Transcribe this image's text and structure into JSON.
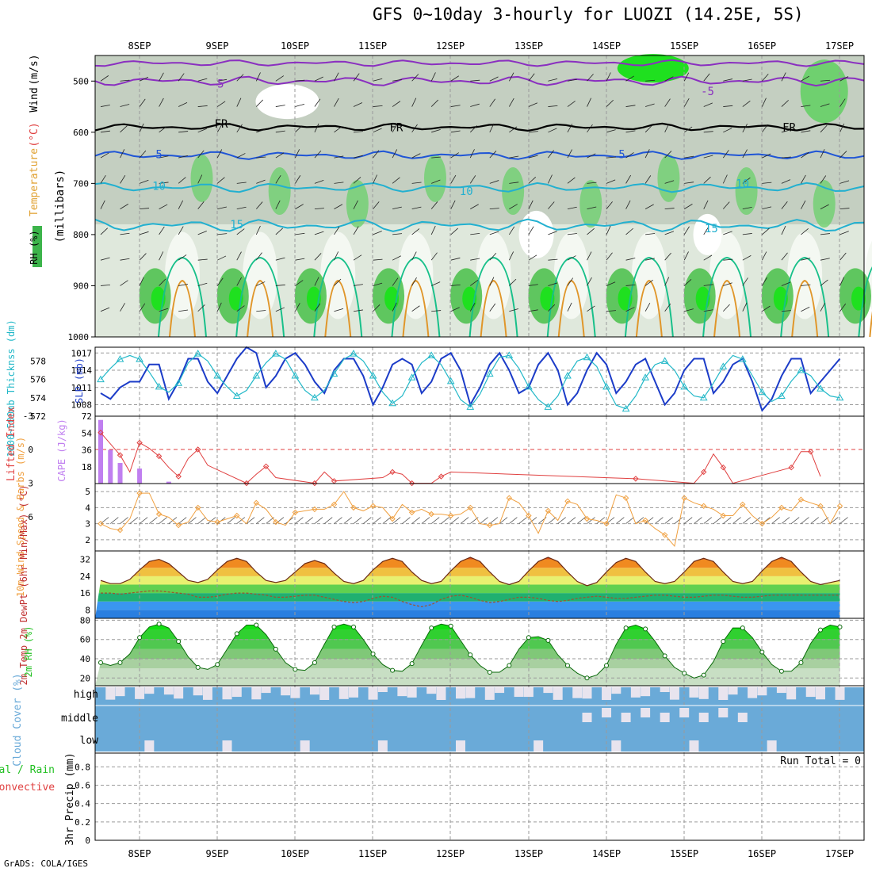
{
  "title": "GFS 0~10day 3-hourly for LUOZI (14.25E, 5S)",
  "credit": "GrADS: COLA/IGES",
  "colors": {
    "grid": "#9a9a9a",
    "temp_cold": "#1f55d6",
    "temp_mid": "#22b0d0",
    "temp_warm": "#18c08a",
    "temp_hot": "#e0962a",
    "purple": "#8a2fc0",
    "rh_green": "#49c049",
    "slp": "#1c3cc8",
    "thickness": "#22b8c8",
    "cape": "#c07ff0",
    "lifted": "#e04040",
    "wind10": "#f0a040",
    "rh2m": "#20c020",
    "cloud": "#6aaad8",
    "cloud_gap": "#e8e4ee",
    "precip_label": "#22c022"
  },
  "chart_data": [
    {
      "type": "heatmap",
      "panel": "upper-air",
      "labels": [
        "RH (%)",
        "Temperature",
        "(°C)",
        "Wind",
        "(m/s)"
      ],
      "ylabel": "(millibars)",
      "y_ticks": [
        500,
        600,
        700,
        800,
        900,
        1000
      ],
      "ylim": [
        1000,
        450
      ],
      "x_ticks": [
        "8SEP",
        "9SEP",
        "10SEP",
        "11SEP",
        "12SEP",
        "13SEP",
        "14SEP",
        "15SEP",
        "16SEP",
        "17SEP"
      ],
      "contour_labels": [
        {
          "text": "-5",
          "day": 1.0,
          "p": 505
        },
        {
          "text": "-5",
          "day": 7.3,
          "p": 520
        },
        {
          "text": "FR",
          "day": 1.05,
          "p": 583
        },
        {
          "text": "FR",
          "day": 3.3,
          "p": 590
        },
        {
          "text": "FR",
          "day": 8.35,
          "p": 590
        },
        {
          "text": "5",
          "day": 0.25,
          "p": 643
        },
        {
          "text": "5",
          "day": 6.2,
          "p": 643
        },
        {
          "text": "10",
          "day": 0.25,
          "p": 705
        },
        {
          "text": "10",
          "day": 4.2,
          "p": 715
        },
        {
          "text": "10",
          "day": 7.75,
          "p": 700
        },
        {
          "text": "15",
          "day": 1.25,
          "p": 780
        },
        {
          "text": "15",
          "day": 7.35,
          "p": 788
        }
      ],
      "temp_levels": [
        {
          "label": "-5",
          "base": 500,
          "amp": 9,
          "color": "#8a2fc0"
        },
        {
          "label": "-5",
          "base": 465,
          "amp": 6,
          "color": "#8a2fc0"
        },
        {
          "label": "FR",
          "base": 590,
          "amp": 7,
          "color": "#000000"
        },
        {
          "label": "5",
          "base": 645,
          "amp": 8,
          "color": "#1f55d6"
        },
        {
          "label": "10",
          "base": 708,
          "amp": 9,
          "color": "#22b0d0"
        },
        {
          "label": "15",
          "base": 782,
          "amp": 12,
          "color": "#22b0d0"
        }
      ]
    },
    {
      "type": "line",
      "panel": "slp-thickness",
      "ylabel_left": "1000~500mb Thicknss (dm)",
      "ylabel_right": "SLP (mb)",
      "y_ticks_left": [
        572,
        574,
        576,
        578
      ],
      "ylim_left": [
        572,
        579.5
      ],
      "y_ticks_right": [
        1008,
        1011,
        1014,
        1017
      ],
      "ylim_right": [
        1006,
        1018
      ],
      "series": [
        {
          "name": "SLP (mb)",
          "y": [
            1010,
            1009,
            1011,
            1012,
            1012,
            1015,
            1015,
            1009,
            1012,
            1016,
            1016,
            1012,
            1010,
            1013,
            1016,
            1018,
            1017,
            1011,
            1013,
            1016,
            1017,
            1015,
            1012,
            1010,
            1014,
            1016,
            1016,
            1013,
            1008,
            1011,
            1015,
            1016,
            1015,
            1010,
            1012,
            1016,
            1017,
            1014,
            1008,
            1011,
            1015,
            1017,
            1014,
            1010,
            1011,
            1015,
            1017,
            1014,
            1008,
            1010,
            1014,
            1017,
            1015,
            1010,
            1012,
            1015,
            1016,
            1012,
            1008,
            1010,
            1014,
            1016,
            1016,
            1010,
            1012,
            1015,
            1016,
            1012,
            1007,
            1009,
            1013,
            1016,
            1016,
            1010,
            1012,
            1014,
            1016
          ]
        },
        {
          "name": "Thickness (dm)",
          "y": [
            576.0,
            577.2,
            578.2,
            578.6,
            578.2,
            576.8,
            575.2,
            574.6,
            575.6,
            577.8,
            578.8,
            578.0,
            576.4,
            575.2,
            574.2,
            574.8,
            576.4,
            577.8,
            578.8,
            578.2,
            576.4,
            574.8,
            574.0,
            574.8,
            576.6,
            578.2,
            578.8,
            578.0,
            576.4,
            574.6,
            573.4,
            574.2,
            576.2,
            577.8,
            578.6,
            577.6,
            575.8,
            573.8,
            573.0,
            574.4,
            576.6,
            578.4,
            578.6,
            577.2,
            575.2,
            573.8,
            573.0,
            574.2,
            576.4,
            578.0,
            578.4,
            577.4,
            575.2,
            573.2,
            572.8,
            574.2,
            576.2,
            577.6,
            578.0,
            577.0,
            575.2,
            574.2,
            574.0,
            575.6,
            577.4,
            578.6,
            578.2,
            576.4,
            574.6,
            573.6,
            574.2,
            575.8,
            577.0,
            576.4,
            575.0,
            574.2,
            574.0
          ]
        }
      ]
    },
    {
      "type": "bar",
      "panel": "cape-lifted-index",
      "ylabel_left": "Lifted Index",
      "ylabel_right": "CAPE (J/kg)",
      "y_ticks_left": [
        -3,
        0,
        3,
        6
      ],
      "y_ticks_left_labels": [
        "-3",
        "0",
        "3",
        "6"
      ],
      "y_ticks_right": [
        18,
        36,
        54,
        72
      ],
      "cape_ylim": [
        0,
        72
      ],
      "cape_values": [
        68,
        36,
        22,
        0,
        16,
        0,
        0,
        2,
        0,
        0,
        0,
        0,
        0,
        0,
        0,
        0,
        0,
        0,
        0,
        0,
        0,
        0,
        0,
        0,
        0,
        0,
        0,
        0,
        0,
        0,
        0,
        0,
        0,
        0,
        0,
        0,
        0,
        0,
        0,
        0,
        0,
        0,
        0,
        0,
        0,
        0,
        0,
        0,
        0,
        0,
        0,
        0,
        0,
        0,
        0,
        0,
        0,
        0,
        0,
        0,
        0,
        0,
        0,
        0,
        0,
        0,
        0,
        0,
        0,
        0,
        0,
        0,
        0,
        0,
        0,
        0,
        0
      ],
      "lifted_index_values": [
        -1.5,
        -0.5,
        0.5,
        2.0,
        -0.6,
        -0.1,
        0.6,
        1.6,
        2.4,
        0.8,
        0.0,
        1.4,
        3.4,
        4.0,
        3.5,
        3.0,
        2.2,
        1.5,
        2.5,
        3.6,
        4.5,
        3.8,
        3.0,
        2.0,
        2.8,
        3.8,
        4.8,
        4.2,
        3.4,
        2.5,
        2.0,
        2.2,
        3.0,
        3.4,
        3.0,
        2.4,
        2.0,
        3.4,
        4.3,
        4.8,
        5.0,
        4.8,
        4.0,
        3.2,
        3.6,
        4.3,
        5.0,
        4.8,
        3.6,
        4.2,
        4.4,
        5.0,
        5.0,
        4.6,
        3.5,
        2.6,
        3.8,
        4.6,
        5.2,
        5.0,
        4.2,
        3.0,
        2.0,
        0.4,
        1.6,
        3.0,
        3.5,
        4.2,
        5.0,
        4.6,
        3.4,
        1.6,
        0.2,
        0.2,
        2.4,
        4.6,
        5.0
      ]
    },
    {
      "type": "line",
      "panel": "10m-wind",
      "ylabel": "10m Wind Speed & Barbs (m/s)",
      "y_ticks": [
        2,
        3,
        4,
        5
      ],
      "ylim": [
        1.3,
        5.5
      ],
      "series": [
        {
          "name": "10m Wind Speed",
          "y": [
            3.0,
            2.7,
            2.6,
            3.3,
            4.9,
            4.9,
            3.6,
            3.4,
            2.9,
            3.1,
            4.0,
            3.2,
            3.1,
            3.3,
            3.5,
            3.0,
            4.3,
            3.9,
            3.1,
            2.9,
            3.7,
            3.8,
            3.9,
            3.9,
            4.2,
            5.0,
            4.0,
            3.8,
            4.1,
            4.0,
            3.3,
            4.2,
            3.7,
            3.9,
            3.6,
            3.6,
            3.5,
            3.6,
            4.0,
            3.0,
            2.9,
            3.0,
            4.6,
            4.3,
            3.5,
            2.4,
            3.8,
            3.2,
            4.4,
            4.2,
            3.3,
            3.2,
            3.0,
            4.8,
            4.6,
            3.0,
            3.2,
            2.7,
            2.3,
            1.6,
            4.6,
            4.3,
            4.1,
            3.9,
            3.5,
            3.5,
            4.2,
            3.5,
            3.0,
            3.4,
            4.0,
            3.8,
            4.5,
            4.3,
            4.1,
            3.0,
            4.1
          ]
        }
      ]
    },
    {
      "type": "area",
      "panel": "2m-temp",
      "ylabel": "2m Temp 2m DewPt (6hr Min/Max) (°C)",
      "y_ticks": [
        8,
        16,
        24,
        32
      ],
      "ylim": [
        4,
        36
      ],
      "series": [
        {
          "name": "2m Temp",
          "y": [
            22.0,
            20.5,
            20.5,
            22.5,
            27,
            31,
            32,
            30,
            26,
            22,
            21,
            22.5,
            27,
            31,
            32.5,
            31,
            26,
            22,
            21,
            22,
            26,
            30,
            31.5,
            30,
            25.5,
            21.5,
            20.5,
            22,
            27,
            31,
            32.5,
            31,
            26,
            22,
            20.5,
            21.5,
            26.5,
            31,
            33,
            31,
            26,
            21.5,
            20,
            21.5,
            26.5,
            31,
            33,
            31,
            26,
            21.5,
            19.5,
            21,
            26,
            30.5,
            32.5,
            31,
            26,
            21.5,
            20.5,
            21.5,
            26,
            31,
            32.5,
            31,
            26,
            21.5,
            20.5,
            21.5,
            26.5,
            31,
            33,
            31,
            26,
            21.5,
            20,
            21,
            22
          ]
        },
        {
          "name": "2m DewPt",
          "y": [
            16,
            16,
            15.5,
            16,
            16.5,
            17,
            17,
            16.5,
            16,
            15.5,
            14,
            14,
            14.5,
            15.5,
            16,
            16,
            15.5,
            15,
            14,
            14,
            14.5,
            15,
            15,
            14,
            13,
            12,
            11.5,
            12,
            13.5,
            14.5,
            14,
            12,
            10.5,
            9.5,
            10.5,
            13,
            14.5,
            15,
            14,
            12.5,
            11.5,
            12,
            13,
            14,
            14,
            13.5,
            12.5,
            12,
            12.5,
            13.5,
            14,
            14.5,
            14,
            13.5,
            13.5,
            14,
            14.5,
            15,
            15,
            14.5,
            14,
            14,
            14.5,
            15,
            15,
            14.5,
            14,
            14,
            14.5,
            15,
            15,
            15,
            15,
            15,
            15,
            15,
            15
          ]
        }
      ]
    },
    {
      "type": "area",
      "panel": "2m-rh",
      "ylabel": "2m RH (%)",
      "y_ticks": [
        20,
        40,
        60,
        80
      ],
      "ylim": [
        12,
        82
      ],
      "series": [
        {
          "name": "2m RH",
          "y": [
            36,
            33,
            36,
            45,
            62,
            73,
            76,
            72,
            58,
            42,
            31,
            29,
            34,
            50,
            66,
            75,
            75,
            65,
            50,
            36,
            29,
            28,
            36,
            55,
            73,
            76,
            73,
            60,
            45,
            34,
            28,
            27,
            35,
            54,
            72,
            76,
            74,
            59,
            44,
            33,
            26,
            26,
            33,
            50,
            62,
            63,
            59,
            44,
            33,
            25,
            20,
            23,
            33,
            55,
            72,
            75,
            71,
            58,
            43,
            31,
            25,
            20,
            23,
            37,
            58,
            72,
            72,
            62,
            47,
            34,
            27,
            27,
            36,
            56,
            70,
            75,
            73
          ]
        }
      ]
    },
    {
      "type": "bar",
      "panel": "cloud-cover",
      "ylabel": "Cloud Cover (%)",
      "layers": [
        "high",
        "middle",
        "low"
      ]
    },
    {
      "type": "bar",
      "panel": "precip",
      "ylabel": "3hr Precip (mm)",
      "side_labels": [
        "Total / Rain",
        "Convective"
      ],
      "y_ticks": [
        0,
        0.2,
        0.4,
        0.6,
        0.8
      ],
      "ylim": [
        0,
        0.95
      ],
      "annotation": "Run Total = 0",
      "values": []
    }
  ]
}
